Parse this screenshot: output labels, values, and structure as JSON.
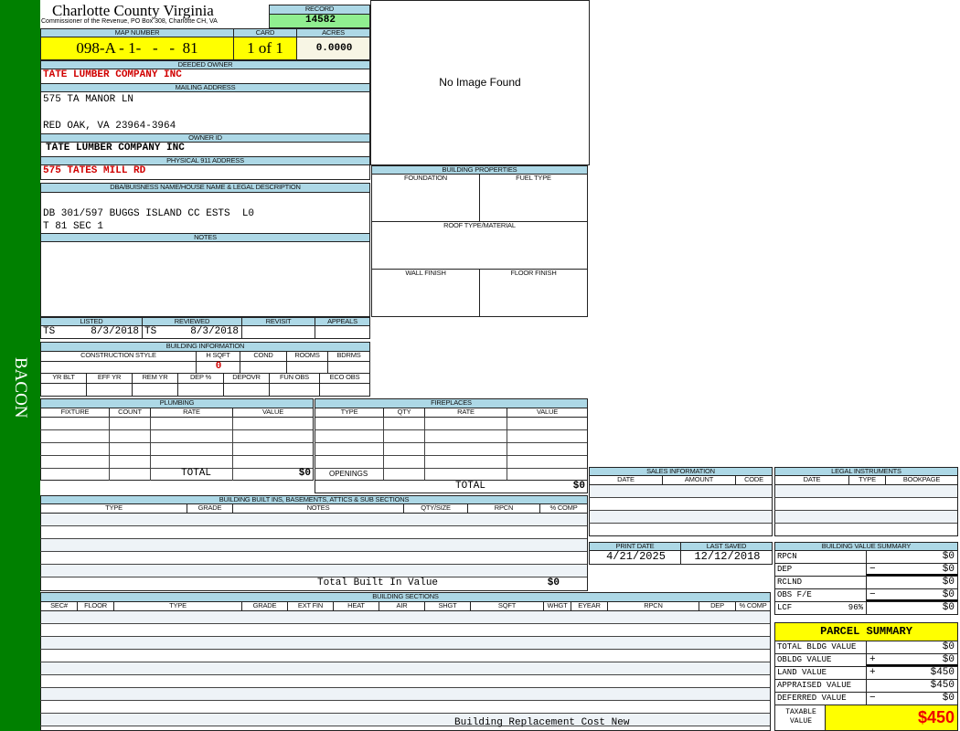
{
  "sidebar": {
    "label": "BACON",
    "color": "#008000"
  },
  "header": {
    "title": "Charlotte County Virginia",
    "subtitle": "Commissioner of the Revenue, PO Box 308, Charlotte CH, VA",
    "record_label": "RECORD",
    "record": "14582"
  },
  "parcel": {
    "map_label": "MAP NUMBER",
    "map": "098-A - 1-   -   -  81",
    "card_label": "CARD",
    "card": "1 of 1",
    "acres_label": "ACRES",
    "acres": "0.0000"
  },
  "owner": {
    "deeded_label": "DEEDED OWNER",
    "deeded": "TATE LUMBER COMPANY INC",
    "mailing_label": "MAILING ADDRESS",
    "mailing_line1": "575 TA MANOR LN",
    "mailing_line2": "RED OAK, VA 23964-3964",
    "owner_id_label": "OWNER ID",
    "owner_id": "TATE LUMBER COMPANY INC",
    "physical_label": "PHYSICAL 911 ADDRESS",
    "physical": "575 TATES MILL RD"
  },
  "image": {
    "text": "No Image Found"
  },
  "building_properties": {
    "title": "BUILDING PROPERTIES",
    "foundation": "FOUNDATION",
    "fuel": "FUEL TYPE",
    "roof": "ROOF TYPE/MATERIAL",
    "wall": "WALL FINISH",
    "floor": "FLOOR FINISH"
  },
  "dba": {
    "label": "DBA/BUISNESS NAME/HOUSE NAME & LEGAL DESCRIPTION",
    "line1": "DB 301/597 BUGGS ISLAND CC ESTS  L0",
    "line2": "T 81 SEC 1"
  },
  "notes": {
    "label": "NOTES"
  },
  "review": {
    "listed_label": "LISTED",
    "listed_by": "TS",
    "listed_date": "8/3/2018",
    "reviewed_label": "REVIEWED",
    "reviewed_by": "TS",
    "reviewed_date": "8/3/2018",
    "revisit_label": "REVISIT",
    "appeals_label": "APPEALS"
  },
  "building_info": {
    "title": "BUILDING INFORMATION",
    "cols1": [
      "CONSTRUCTION STYLE",
      "H SQFT",
      "COND",
      "ROOMS",
      "BDRMS"
    ],
    "hsqft": "0",
    "cols2": [
      "YR BLT",
      "EFF YR",
      "REM YR",
      "DEP %",
      "DEPOVR",
      "FUN OBS",
      "ECO OBS"
    ]
  },
  "plumbing": {
    "title": "PLUMBING",
    "cols": [
      "FIXTURE",
      "COUNT",
      "RATE",
      "VALUE"
    ],
    "total_label": "TOTAL",
    "total": "$0"
  },
  "fireplaces": {
    "title": "FIREPLACES",
    "cols": [
      "TYPE",
      "QTY",
      "RATE",
      "VALUE"
    ],
    "openings": "OPENINGS",
    "total_label": "TOTAL",
    "total": "$0"
  },
  "built_ins": {
    "title": "BUILDING BUILT INS, BASEMENTS, ATTICS & SUB SECTIONS",
    "cols": [
      "TYPE",
      "GRADE",
      "NOTES",
      "QTY/SIZE",
      "RPCN",
      "% COMP"
    ],
    "total_label": "Total Built In Value",
    "total": "$0"
  },
  "sections": {
    "title": "BUILDING SECTIONS",
    "cols": [
      "SEC#",
      "FLOOR",
      "TYPE",
      "GRADE",
      "EXT FIN",
      "HEAT",
      "AIR",
      "SHGT",
      "SQFT",
      "WHGT",
      "EYEAR",
      "RPCN",
      "DEP",
      "% COMP"
    ],
    "footer": "Building Replacement Cost New"
  },
  "sales": {
    "title": "SALES INFORMATION",
    "cols": [
      "DATE",
      "AMOUNT",
      "CODE"
    ]
  },
  "legal": {
    "title": "LEGAL INSTRUMENTS",
    "cols": [
      "DATE",
      "TYPE",
      "BOOKPAGE"
    ]
  },
  "dates": {
    "print_label": "PRINT DATE",
    "print": "4/21/2025",
    "saved_label": "LAST SAVED",
    "saved": "12/12/2018"
  },
  "value_summary": {
    "title": "BUILDING VALUE SUMMARY",
    "rows": [
      {
        "label": "RPCN",
        "op": "",
        "value": "$0"
      },
      {
        "label": "DEP",
        "op": "−",
        "value": "$0"
      },
      {
        "label": "RCLND",
        "op": "",
        "value": "$0"
      },
      {
        "label": "OBS F/E",
        "op": "−",
        "value": "$0"
      },
      {
        "label": "LCF",
        "pct": "96%",
        "op": "",
        "value": "$0"
      }
    ]
  },
  "parcel_summary": {
    "title": "PARCEL SUMMARY",
    "rows": [
      {
        "label": "TOTAL BLDG VALUE",
        "op": "",
        "value": "$0"
      },
      {
        "label": "OBLDG VALUE",
        "op": "+",
        "value": "$0"
      },
      {
        "label": "LAND VALUE",
        "op": "+",
        "value": "$450"
      },
      {
        "label": "APPRAISED VALUE",
        "op": "",
        "value": "$450"
      },
      {
        "label": "DEFERRED VALUE",
        "op": "−",
        "value": "$0"
      }
    ],
    "taxable_label": "TAXABLE\nVALUE",
    "taxable": "$450"
  },
  "colors": {
    "header": "#add8e6",
    "highlight": "#ffff00",
    "record": "#90ee90",
    "alert": "#d00000"
  }
}
